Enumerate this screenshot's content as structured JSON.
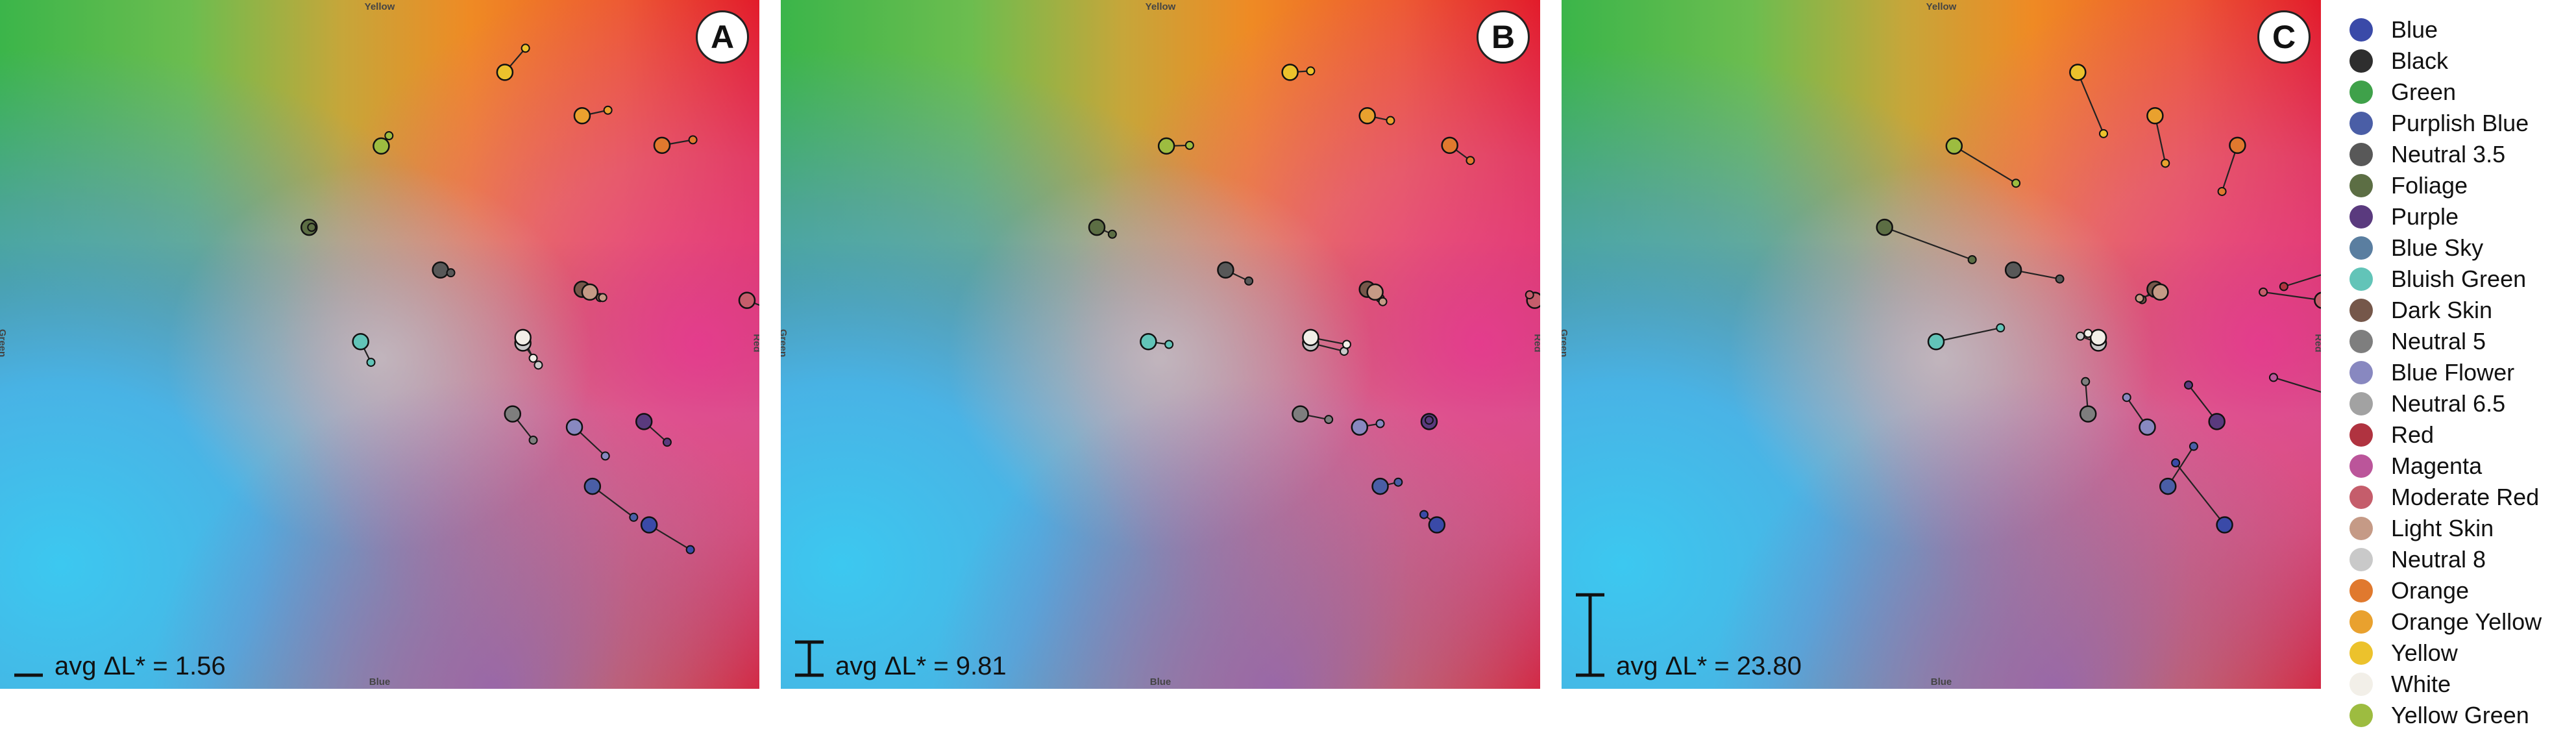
{
  "chart_data": [
    {
      "type": "scatter",
      "panel_label": "A",
      "avg_text": "avg ΔL* = 1.56",
      "avg_dL": 1.56,
      "axis_labels": {
        "top": "Yellow",
        "bottom": "Blue",
        "left": "Green",
        "right": "Red"
      },
      "xlim": [
        0,
        100
      ],
      "ylim": [
        0,
        100
      ],
      "segments": [
        {
          "name": "Yellow",
          "x": [
            19.6,
            20.4
          ],
          "y": [
            10.5,
            7.0
          ]
        },
        {
          "name": "Orange Yellow",
          "x": [
            22.6,
            23.6
          ],
          "y": [
            16.8,
            16.0
          ]
        },
        {
          "name": "Orange",
          "x": [
            25.7,
            26.9
          ],
          "y": [
            21.1,
            20.3
          ]
        },
        {
          "name": "Yellow Green",
          "x": [
            14.8,
            15.1
          ],
          "y": [
            21.2,
            19.7
          ]
        },
        {
          "name": "Foliage",
          "x": [
            12.0,
            12.1
          ],
          "y": [
            33.0,
            33.0
          ]
        },
        {
          "name": "Neutral 3.5",
          "x": [
            17.1,
            17.5
          ],
          "y": [
            39.2,
            39.6
          ]
        },
        {
          "name": "Dark Skin",
          "x": [
            22.6,
            23.3
          ],
          "y": [
            42.0,
            43.2
          ]
        },
        {
          "name": "Light Skin",
          "x": [
            22.9,
            23.4
          ],
          "y": [
            42.4,
            43.2
          ]
        },
        {
          "name": "Red",
          "x": [
            30.6,
            31.0
          ],
          "y": [
            38.1,
            38.6
          ]
        },
        {
          "name": "Moderate Red",
          "x": [
            29.0,
            29.9
          ],
          "y": [
            43.6,
            44.9
          ]
        },
        {
          "name": "Bluish Green",
          "x": [
            14.0,
            14.4
          ],
          "y": [
            49.6,
            52.6
          ]
        },
        {
          "name": "Neutral 8",
          "x": [
            20.3,
            20.9
          ],
          "y": [
            49.8,
            53.0
          ]
        },
        {
          "name": "White",
          "x": [
            20.3,
            20.7
          ],
          "y": [
            49.0,
            52.0
          ]
        },
        {
          "name": "Magenta",
          "x": [
            30.0,
            30.9
          ],
          "y": [
            58.0,
            61.0
          ]
        },
        {
          "name": "Neutral 5",
          "x": [
            19.9,
            20.7
          ],
          "y": [
            60.1,
            63.9
          ]
        },
        {
          "name": "Blue Flower",
          "x": [
            22.3,
            23.5
          ],
          "y": [
            62.0,
            66.2
          ]
        },
        {
          "name": "Purple",
          "x": [
            25.0,
            25.9
          ],
          "y": [
            61.2,
            64.2
          ]
        },
        {
          "name": "Purplish Blue",
          "x": [
            23.0,
            24.6
          ],
          "y": [
            70.6,
            75.1
          ]
        },
        {
          "name": "Blue",
          "x": [
            25.2,
            26.8
          ],
          "y": [
            76.2,
            79.8
          ]
        }
      ]
    },
    {
      "type": "scatter",
      "panel_label": "B",
      "avg_text": "avg ΔL* = 9.81",
      "avg_dL": 9.81,
      "axis_labels": {
        "top": "Yellow",
        "bottom": "Blue",
        "left": "Green",
        "right": "Red"
      },
      "xlim": [
        0,
        100
      ],
      "ylim": [
        0,
        100
      ],
      "segments": [
        {
          "name": "Yellow",
          "x": [
            60.4,
            61.2
          ],
          "y": [
            10.5,
            10.3
          ]
        },
        {
          "name": "Orange Yellow",
          "x": [
            63.4,
            64.3
          ],
          "y": [
            16.8,
            17.5
          ]
        },
        {
          "name": "Orange",
          "x": [
            66.6,
            67.4
          ],
          "y": [
            21.1,
            23.3
          ]
        },
        {
          "name": "Yellow Green",
          "x": [
            55.6,
            56.5
          ],
          "y": [
            21.2,
            21.1
          ]
        },
        {
          "name": "Foliage",
          "x": [
            52.9,
            53.5
          ],
          "y": [
            33.0,
            34.0
          ]
        },
        {
          "name": "Neutral 3.5",
          "x": [
            57.9,
            58.8
          ],
          "y": [
            39.2,
            40.8
          ]
        },
        {
          "name": "Dark Skin",
          "x": [
            63.4,
            63.9
          ],
          "y": [
            42.0,
            43.3
          ]
        },
        {
          "name": "Light Skin",
          "x": [
            63.7,
            64.0
          ],
          "y": [
            42.4,
            43.8
          ]
        },
        {
          "name": "Red",
          "x": [
            71.4,
            71.0
          ],
          "y": [
            38.1,
            37.4
          ]
        },
        {
          "name": "Moderate Red",
          "x": [
            69.9,
            69.7
          ],
          "y": [
            43.6,
            42.8
          ]
        },
        {
          "name": "Bluish Green",
          "x": [
            54.9,
            55.7
          ],
          "y": [
            49.6,
            50.0
          ]
        },
        {
          "name": "Neutral 8",
          "x": [
            61.2,
            62.5
          ],
          "y": [
            49.8,
            51.0
          ]
        },
        {
          "name": "White",
          "x": [
            61.2,
            62.6
          ],
          "y": [
            49.0,
            50.0
          ]
        },
        {
          "name": "Magenta",
          "x": [
            70.8,
            70.5
          ],
          "y": [
            58.0,
            57.4
          ]
        },
        {
          "name": "Neutral 5",
          "x": [
            60.8,
            61.9
          ],
          "y": [
            60.1,
            60.9
          ]
        },
        {
          "name": "Blue Flower",
          "x": [
            63.1,
            63.9
          ],
          "y": [
            62.0,
            61.5
          ]
        },
        {
          "name": "Purple",
          "x": [
            65.8,
            65.8
          ],
          "y": [
            61.2,
            61.0
          ]
        },
        {
          "name": "Purplish Blue",
          "x": [
            63.9,
            64.6
          ],
          "y": [
            70.6,
            70.0
          ]
        },
        {
          "name": "Blue",
          "x": [
            66.1,
            65.6
          ],
          "y": [
            76.2,
            74.7
          ]
        }
      ]
    },
    {
      "type": "scatter",
      "panel_label": "C",
      "avg_text": "avg ΔL* = 23.80",
      "avg_dL": 23.8,
      "axis_labels": {
        "top": "Yellow",
        "bottom": "Blue",
        "left": "Green",
        "right": "Red"
      },
      "xlim": [
        0,
        100
      ],
      "ylim": [
        0,
        100
      ],
      "segments": [
        {
          "name": "Yellow",
          "x": [
            101.3,
            102.3
          ],
          "y": [
            10.5,
            19.4
          ]
        },
        {
          "name": "Orange Yellow",
          "x": [
            104.3,
            104.7
          ],
          "y": [
            16.8,
            23.7
          ]
        },
        {
          "name": "Orange",
          "x": [
            107.5,
            106.9
          ],
          "y": [
            21.1,
            27.8
          ]
        },
        {
          "name": "Yellow Green",
          "x": [
            96.5,
            98.9
          ],
          "y": [
            21.2,
            26.6
          ]
        },
        {
          "name": "Foliage",
          "x": [
            93.8,
            97.2
          ],
          "y": [
            33.0,
            37.7
          ]
        },
        {
          "name": "Neutral 3.5",
          "x": [
            98.8,
            100.6
          ],
          "y": [
            39.2,
            40.5
          ]
        },
        {
          "name": "Dark Skin",
          "x": [
            104.3,
            103.8
          ],
          "y": [
            42.0,
            43.5
          ]
        },
        {
          "name": "Light Skin",
          "x": [
            104.5,
            103.7
          ],
          "y": [
            42.4,
            43.3
          ]
        },
        {
          "name": "Red",
          "x": [
            112.3,
            109.3
          ],
          "y": [
            38.1,
            41.6
          ]
        },
        {
          "name": "Moderate Red",
          "x": [
            110.8,
            108.5
          ],
          "y": [
            43.6,
            42.4
          ]
        },
        {
          "name": "Bluish Green",
          "x": [
            95.8,
            98.3
          ],
          "y": [
            49.6,
            47.6
          ]
        },
        {
          "name": "Neutral 8",
          "x": [
            102.1,
            101.4
          ],
          "y": [
            49.8,
            48.8
          ]
        },
        {
          "name": "White",
          "x": [
            102.1,
            101.7
          ],
          "y": [
            49.0,
            48.4
          ]
        },
        {
          "name": "Magenta",
          "x": [
            111.7,
            108.9
          ],
          "y": [
            58.0,
            54.8
          ]
        },
        {
          "name": "Neutral 5",
          "x": [
            101.7,
            101.6
          ],
          "y": [
            60.1,
            55.4
          ]
        },
        {
          "name": "Blue Flower",
          "x": [
            104.0,
            103.2
          ],
          "y": [
            62.0,
            57.7
          ]
        },
        {
          "name": "Purple",
          "x": [
            106.7,
            105.6
          ],
          "y": [
            61.2,
            55.9
          ]
        },
        {
          "name": "Purplish Blue",
          "x": [
            104.8,
            105.8
          ],
          "y": [
            70.6,
            64.8
          ]
        },
        {
          "name": "Blue",
          "x": [
            107.0,
            105.1
          ],
          "y": [
            76.2,
            67.2
          ]
        }
      ]
    }
  ],
  "legend": [
    {
      "label": "Blue",
      "color": "#3a4aa8"
    },
    {
      "label": "Black",
      "color": "#2e2e2e"
    },
    {
      "label": "Green",
      "color": "#3fa14a"
    },
    {
      "label": "Purplish Blue",
      "color": "#4a5ea6"
    },
    {
      "label": "Neutral 3.5",
      "color": "#585858"
    },
    {
      "label": "Foliage",
      "color": "#5c6e44"
    },
    {
      "label": "Purple",
      "color": "#5a3a7e"
    },
    {
      "label": "Blue Sky",
      "color": "#5a7ea0"
    },
    {
      "label": "Bluish Green",
      "color": "#62c4b8"
    },
    {
      "label": "Dark Skin",
      "color": "#75574a"
    },
    {
      "label": "Neutral 5",
      "color": "#7e7e7e"
    },
    {
      "label": "Blue Flower",
      "color": "#8888c0"
    },
    {
      "label": "Neutral 6.5",
      "color": "#a2a2a2"
    },
    {
      "label": "Red",
      "color": "#b03340"
    },
    {
      "label": "Magenta",
      "color": "#bb559a"
    },
    {
      "label": "Moderate Red",
      "color": "#c55d6b"
    },
    {
      "label": "Light Skin",
      "color": "#c59a86"
    },
    {
      "label": "Neutral 8",
      "color": "#c9c9c9"
    },
    {
      "label": "Orange",
      "color": "#e0792e"
    },
    {
      "label": "Orange Yellow",
      "color": "#e9a12e"
    },
    {
      "label": "Yellow",
      "color": "#ecc22c"
    },
    {
      "label": "White",
      "color": "#f2efe8"
    },
    {
      "label": "Yellow Green",
      "color": "#9dbc40"
    }
  ]
}
